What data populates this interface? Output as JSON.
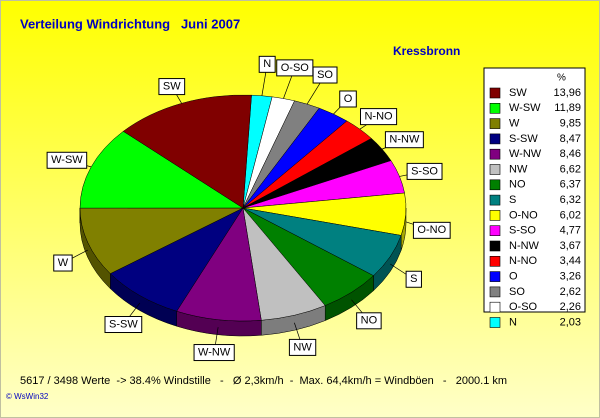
{
  "chart_data": {
    "type": "pie3d",
    "title": "Verteilung Windrichtung   Juni 2007",
    "subtitle": "Kressbronn",
    "legend_title": "%",
    "categories": [
      "SW",
      "W-SW",
      "W",
      "S-SW",
      "W-NW",
      "NW",
      "NO",
      "S",
      "O-NO",
      "S-SO",
      "N-NW",
      "N-NO",
      "O",
      "SO",
      "O-SO",
      "N"
    ],
    "values": [
      13.96,
      11.89,
      9.85,
      8.47,
      8.46,
      6.62,
      6.37,
      6.32,
      6.02,
      4.77,
      3.67,
      3.44,
      3.26,
      2.62,
      2.26,
      2.03
    ],
    "value_labels": [
      "13,96",
      "11,89",
      "9,85",
      "8,47",
      "8,46",
      "6,62",
      "6,37",
      "6,32",
      "6,02",
      "4,77",
      "3,67",
      "3,44",
      "3,26",
      "2,62",
      "2,26",
      "2,03"
    ],
    "colors": [
      "#800000",
      "#00ff00",
      "#808000",
      "#000080",
      "#800080",
      "#c0c0c0",
      "#008000",
      "#008080",
      "#ffff00",
      "#ff00ff",
      "#000000",
      "#ff0000",
      "#0000ff",
      "#808080",
      "#ffffff",
      "#00ffff"
    ],
    "footer": "5617 / 3498 Werte  -> 38.4% Windstille   -   Ø 2,3km/h  -  Max. 64,4km/h = Windböen   -   2000.1 km",
    "copyright": "© WsWin32"
  }
}
